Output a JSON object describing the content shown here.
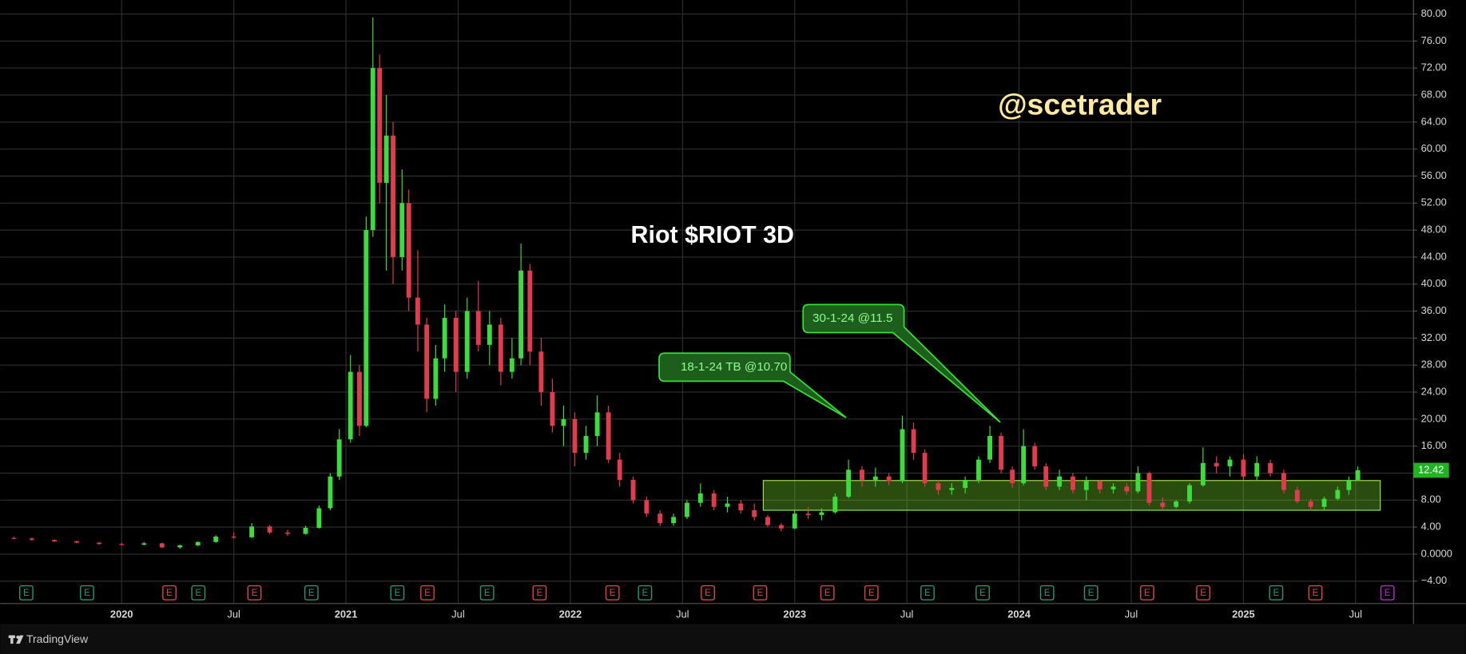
{
  "chart_data": {
    "type": "candlestick",
    "title": "Riot $RIOT 3D",
    "watermark": "@scetrader",
    "x": [
      2019.52,
      2019.6,
      2019.7,
      2019.8,
      2019.9,
      2020.0,
      2020.1,
      2020.18,
      2020.26,
      2020.34,
      2020.42,
      2020.5,
      2020.58,
      2020.66,
      2020.74,
      2020.82,
      2020.88,
      2020.93,
      2020.97,
      2021.02,
      2021.06,
      2021.09,
      2021.12,
      2021.15,
      2021.18,
      2021.21,
      2021.25,
      2021.28,
      2021.32,
      2021.36,
      2021.4,
      2021.44,
      2021.49,
      2021.54,
      2021.59,
      2021.64,
      2021.69,
      2021.74,
      2021.78,
      2021.82,
      2021.87,
      2021.92,
      2021.97,
      2022.02,
      2022.07,
      2022.12,
      2022.17,
      2022.22,
      2022.28,
      2022.34,
      2022.4,
      2022.46,
      2022.52,
      2022.58,
      2022.64,
      2022.7,
      2022.76,
      2022.82,
      2022.88,
      2022.94,
      2023.0,
      2023.06,
      2023.12,
      2023.18,
      2023.24,
      2023.3,
      2023.36,
      2023.42,
      2023.48,
      2023.53,
      2023.58,
      2023.64,
      2023.7,
      2023.76,
      2023.82,
      2023.87,
      2023.92,
      2023.97,
      2024.02,
      2024.07,
      2024.12,
      2024.18,
      2024.24,
      2024.3,
      2024.36,
      2024.42,
      2024.48,
      2024.53,
      2024.58,
      2024.64,
      2024.7,
      2024.76,
      2024.82,
      2024.88,
      2024.94,
      2025.0,
      2025.06,
      2025.12,
      2025.18,
      2025.24,
      2025.3,
      2025.36,
      2025.42,
      2025.47,
      2025.51
    ],
    "open": [
      2.4,
      2.3,
      2.1,
      1.9,
      1.7,
      1.5,
      1.4,
      1.6,
      1.0,
      1.3,
      1.8,
      2.6,
      2.5,
      4.1,
      3.2,
      3.0,
      3.9,
      6.8,
      11.5,
      17.0,
      27.0,
      19.0,
      48.0,
      72.0,
      55.0,
      62.0,
      44.0,
      52.0,
      38.0,
      34.0,
      23.0,
      29.0,
      35.0,
      27.0,
      36.0,
      31.0,
      34.0,
      27.0,
      29.0,
      42.0,
      30.0,
      24.0,
      19.0,
      20.0,
      15.0,
      17.5,
      21.0,
      14.0,
      11.0,
      8.0,
      6.0,
      4.6,
      5.5,
      7.6,
      9.0,
      7.0,
      7.5,
      6.5,
      5.5,
      4.3,
      3.8,
      6.0,
      5.8,
      6.2,
      8.5,
      12.5,
      11.0,
      11.5,
      10.8,
      18.5,
      15.0,
      10.5,
      9.5,
      9.8,
      11.0,
      14.0,
      17.5,
      12.5,
      10.5,
      16.0,
      13.0,
      10.0,
      11.5,
      9.5,
      10.8,
      9.6,
      10.0,
      9.3,
      12.0,
      7.6,
      7.0,
      7.8,
      10.2,
      13.5,
      13.0,
      14.0,
      11.5,
      13.5,
      12.0,
      9.5,
      7.8,
      7.0,
      8.2,
      9.5,
      11.0
    ],
    "high": [
      2.6,
      2.5,
      2.2,
      2.0,
      1.8,
      1.7,
      1.8,
      1.7,
      1.4,
      1.9,
      2.8,
      3.2,
      4.6,
      4.3,
      3.6,
      4.2,
      7.2,
      12.0,
      18.5,
      29.5,
      28.0,
      50.0,
      79.5,
      74.0,
      68.0,
      64.0,
      57.0,
      54.0,
      45.0,
      35.0,
      31.0,
      37.0,
      36.0,
      38.0,
      40.5,
      36.0,
      35.0,
      32.0,
      46.0,
      43.0,
      32.0,
      26.0,
      22.0,
      21.0,
      19.0,
      23.5,
      22.0,
      15.0,
      11.5,
      8.5,
      6.5,
      6.0,
      8.0,
      10.5,
      9.5,
      8.5,
      8.0,
      7.5,
      5.8,
      4.6,
      6.5,
      7.0,
      6.8,
      9.0,
      14.0,
      13.0,
      12.8,
      12.0,
      20.5,
      19.5,
      15.5,
      11.0,
      10.5,
      11.5,
      14.5,
      19.0,
      18.0,
      13.0,
      18.5,
      16.5,
      13.5,
      12.5,
      12.0,
      11.5,
      11.0,
      10.5,
      10.5,
      13.0,
      12.2,
      8.4,
      8.0,
      10.5,
      15.8,
      14.5,
      14.5,
      14.8,
      14.5,
      14.0,
      12.5,
      10.0,
      8.2,
      8.5,
      10.0,
      11.5,
      13.0
    ],
    "low": [
      2.2,
      2.0,
      1.8,
      1.6,
      1.4,
      1.3,
      1.3,
      0.9,
      0.8,
      1.2,
      1.7,
      2.3,
      2.4,
      3.0,
      2.7,
      2.9,
      3.8,
      6.5,
      11.0,
      16.5,
      17.5,
      18.8,
      47.0,
      52.0,
      42.0,
      40.0,
      42.0,
      36.0,
      30.0,
      21.0,
      22.0,
      27.0,
      24.0,
      26.0,
      30.0,
      28.0,
      25.0,
      26.0,
      28.0,
      28.0,
      22.0,
      18.0,
      16.0,
      13.0,
      14.0,
      16.0,
      13.5,
      10.0,
      7.5,
      5.5,
      4.2,
      4.2,
      5.2,
      7.0,
      6.5,
      6.2,
      6.0,
      5.0,
      4.0,
      3.4,
      3.7,
      5.2,
      5.0,
      6.0,
      8.3,
      10.0,
      10.0,
      10.2,
      10.5,
      14.0,
      10.0,
      8.8,
      8.8,
      9.0,
      10.5,
      13.5,
      12.0,
      9.8,
      10.2,
      12.5,
      9.5,
      9.5,
      9.0,
      8.0,
      9.0,
      9.0,
      8.8,
      9.0,
      7.2,
      6.5,
      6.8,
      7.5,
      10.0,
      12.0,
      11.5,
      11.0,
      11.0,
      11.5,
      9.0,
      7.5,
      6.5,
      6.6,
      8.0,
      8.8,
      10.8
    ],
    "close": [
      2.3,
      2.1,
      1.9,
      1.7,
      1.5,
      1.4,
      1.6,
      1.0,
      1.3,
      1.8,
      2.6,
      2.5,
      4.1,
      3.2,
      3.0,
      3.9,
      6.8,
      11.5,
      17.0,
      27.0,
      19.0,
      48.0,
      72.0,
      55.0,
      62.0,
      44.0,
      52.0,
      38.0,
      34.0,
      23.0,
      29.0,
      35.0,
      27.0,
      36.0,
      31.0,
      34.0,
      27.0,
      29.0,
      42.0,
      30.0,
      24.0,
      19.0,
      20.0,
      15.0,
      17.5,
      21.0,
      14.0,
      11.0,
      8.0,
      6.0,
      4.6,
      5.5,
      7.6,
      9.0,
      7.0,
      7.5,
      6.5,
      5.5,
      4.3,
      3.8,
      6.0,
      5.8,
      6.2,
      8.5,
      12.5,
      11.0,
      11.5,
      10.8,
      18.5,
      15.0,
      10.5,
      9.5,
      9.8,
      11.0,
      14.0,
      17.5,
      12.5,
      10.5,
      16.0,
      13.0,
      10.0,
      11.5,
      9.5,
      10.8,
      9.6,
      10.0,
      9.3,
      12.0,
      7.6,
      7.0,
      7.8,
      10.2,
      13.5,
      13.0,
      14.0,
      11.5,
      13.5,
      12.0,
      9.5,
      7.8,
      7.0,
      8.2,
      9.5,
      11.0,
      12.42
    ],
    "up_color": "#3ddc3d",
    "down_color": "#e23b4d",
    "xlim": [
      2019.492,
      2025.758
    ],
    "xticks": [
      2020,
      {
        "value": 2020.5,
        "label": "Jul"
      },
      2021,
      {
        "value": 2021.5,
        "label": "Jul"
      },
      2022,
      {
        "value": 2022.5,
        "label": "Jul"
      },
      2023,
      {
        "value": 2023.5,
        "label": "Jul"
      },
      2024,
      {
        "value": 2024.5,
        "label": "Jul"
      },
      2025,
      {
        "value": 2025.5,
        "label": "Jul"
      }
    ],
    "ylim": [
      -7.32,
      82.08
    ],
    "yticks": [
      {
        "value": -4,
        "label": "−4.00"
      },
      {
        "value": 0,
        "label": "0.0000"
      },
      {
        "value": 4,
        "label": "4.00"
      },
      {
        "value": 8,
        "label": "8.00"
      },
      {
        "value": 12,
        "label": "12.00"
      },
      {
        "value": 16,
        "label": "16.00"
      },
      {
        "value": 20,
        "label": "20.00"
      },
      {
        "value": 24,
        "label": "24.00"
      },
      {
        "value": 28,
        "label": "28.00"
      },
      {
        "value": 32,
        "label": "32.00"
      },
      {
        "value": 36,
        "label": "36.00"
      },
      {
        "value": 40,
        "label": "40.00"
      },
      {
        "value": 44,
        "label": "44.00"
      },
      {
        "value": 48,
        "label": "48.00"
      },
      {
        "value": 52,
        "label": "52.00"
      },
      {
        "value": 56,
        "label": "56.00"
      },
      {
        "value": 60,
        "label": "60.00"
      },
      {
        "value": 64,
        "label": "64.00"
      },
      {
        "value": 68,
        "label": "68.00"
      },
      {
        "value": 72,
        "label": "72.00"
      },
      {
        "value": 76,
        "label": "76.00"
      },
      {
        "value": 80,
        "label": "80.00"
      }
    ],
    "grid": true,
    "last_price": 12.42,
    "zone": {
      "x": [
        2022.86,
        2025.61
      ],
      "y": [
        6.5,
        10.9
      ]
    },
    "annotations": [
      {
        "text": "18-1-24 TB @10.70"
      },
      {
        "text": "30-1-24 @11.5"
      }
    ],
    "earnings_label": "E",
    "earnings": [
      {
        "x": 2019.575,
        "color": "#1f9a7a"
      },
      {
        "x": 2019.846,
        "color": "#1f9a7a"
      },
      {
        "x": 2020.213,
        "color": "#e0434f"
      },
      {
        "x": 2020.342,
        "color": "#1f9a7a"
      },
      {
        "x": 2020.592,
        "color": "#e0434f"
      },
      {
        "x": 2020.846,
        "color": "#1f9a7a"
      },
      {
        "x": 2021.229,
        "color": "#1f9a7a"
      },
      {
        "x": 2021.363,
        "color": "#e0434f"
      },
      {
        "x": 2021.629,
        "color": "#1f9a7a"
      },
      {
        "x": 2021.863,
        "color": "#e0434f"
      },
      {
        "x": 2022.188,
        "color": "#e0434f"
      },
      {
        "x": 2022.333,
        "color": "#1f9a7a"
      },
      {
        "x": 2022.613,
        "color": "#e0434f"
      },
      {
        "x": 2022.846,
        "color": "#e0434f"
      },
      {
        "x": 2023.146,
        "color": "#e0434f"
      },
      {
        "x": 2023.342,
        "color": "#e0434f"
      },
      {
        "x": 2023.592,
        "color": "#1f9a7a"
      },
      {
        "x": 2023.838,
        "color": "#1f9a7a"
      },
      {
        "x": 2024.125,
        "color": "#1f9a7a"
      },
      {
        "x": 2024.321,
        "color": "#1f9a7a"
      },
      {
        "x": 2024.571,
        "color": "#e0434f"
      },
      {
        "x": 2024.821,
        "color": "#e0434f"
      },
      {
        "x": 2025.146,
        "color": "#1f9a7a"
      },
      {
        "x": 2025.321,
        "color": "#e0434f"
      },
      {
        "x": 2025.642,
        "color": "#c026d3"
      }
    ]
  },
  "footer": {
    "brand": "TradingView"
  }
}
